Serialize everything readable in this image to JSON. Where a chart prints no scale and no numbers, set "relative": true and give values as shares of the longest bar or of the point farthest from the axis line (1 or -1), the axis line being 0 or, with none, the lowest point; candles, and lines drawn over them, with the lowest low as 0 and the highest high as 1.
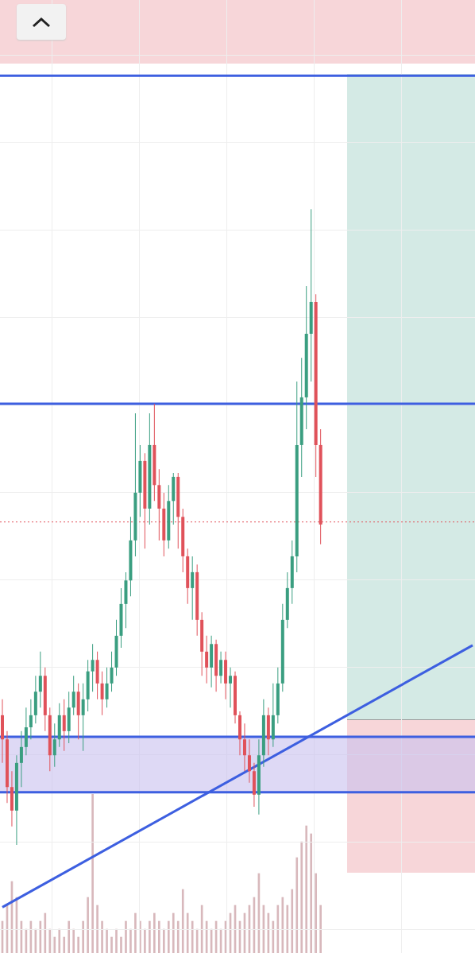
{
  "chart_data": [
    {
      "type": "candlestick",
      "relative": true,
      "grid": true,
      "categories": [
        null,
        null,
        null,
        null,
        null,
        null,
        null,
        null,
        null,
        null,
        null,
        null,
        null,
        null,
        null,
        null,
        null,
        null,
        null,
        null,
        null,
        null,
        null,
        null,
        null,
        null,
        null,
        null,
        null,
        null,
        null,
        null,
        null,
        null,
        null,
        null,
        null,
        null,
        null,
        null,
        null,
        null,
        null,
        null,
        null,
        null,
        null,
        null,
        null,
        null,
        null,
        null,
        null,
        null,
        null,
        null,
        null,
        null,
        null,
        null,
        null,
        null,
        null,
        null,
        null,
        null,
        null,
        null,
        null,
        null,
        null,
        null,
        null,
        null,
        null,
        null,
        null,
        null,
        null,
        null,
        null,
        null,
        null,
        null,
        null,
        null,
        null,
        null,
        null,
        null,
        null,
        null,
        null,
        null,
        null,
        null,
        null,
        null,
        null,
        null
      ],
      "ohlc": [
        [
          0.204,
          0.229,
          0.129,
          0.166
        ],
        [
          0.166,
          0.179,
          0.066,
          0.091
        ],
        [
          0.091,
          0.116,
          0.029,
          0.054
        ],
        [
          0.054,
          0.141,
          0,
          0.129
        ],
        [
          0.129,
          0.179,
          0.091,
          0.154
        ],
        [
          0.154,
          0.216,
          0.141,
          0.185
        ],
        [
          0.185,
          0.229,
          0.166,
          0.204
        ],
        [
          0.204,
          0.266,
          0.191,
          0.241
        ],
        [
          0.241,
          0.304,
          0.216,
          0.266
        ],
        [
          0.266,
          0.279,
          0.179,
          0.204
        ],
        [
          0.204,
          0.216,
          0.116,
          0.141
        ],
        [
          0.141,
          0.191,
          0.123,
          0.166
        ],
        [
          0.166,
          0.223,
          0.154,
          0.204
        ],
        [
          0.204,
          0.229,
          0.148,
          0.179
        ],
        [
          0.179,
          0.241,
          0.16,
          0.216
        ],
        [
          0.216,
          0.266,
          0.204,
          0.241
        ],
        [
          0.241,
          0.254,
          0.166,
          0.204
        ],
        [
          0.204,
          0.254,
          0.148,
          0.229
        ],
        [
          0.229,
          0.291,
          0.21,
          0.273
        ],
        [
          0.273,
          0.316,
          0.241,
          0.291
        ],
        [
          0.291,
          0.304,
          0.229,
          0.254
        ],
        [
          0.254,
          0.273,
          0.204,
          0.229
        ],
        [
          0.229,
          0.279,
          0.216,
          0.254
        ],
        [
          0.254,
          0.304,
          0.241,
          0.279
        ],
        [
          0.279,
          0.354,
          0.266,
          0.329
        ],
        [
          0.329,
          0.404,
          0.31,
          0.379
        ],
        [
          0.379,
          0.429,
          0.341,
          0.416
        ],
        [
          0.416,
          0.516,
          0.391,
          0.479
        ],
        [
          0.479,
          0.679,
          0.454,
          0.554
        ],
        [
          0.554,
          0.629,
          0.516,
          0.604
        ],
        [
          0.604,
          0.616,
          0.466,
          0.529
        ],
        [
          0.529,
          0.679,
          0.504,
          0.629
        ],
        [
          0.629,
          0.694,
          0.541,
          0.566
        ],
        [
          0.566,
          0.591,
          0.479,
          0.529
        ],
        [
          0.529,
          0.554,
          0.454,
          0.479
        ],
        [
          0.479,
          0.566,
          0.466,
          0.541
        ],
        [
          0.541,
          0.585,
          0.504,
          0.579
        ],
        [
          0.579,
          0.585,
          0.466,
          0.516
        ],
        [
          0.516,
          0.529,
          0.429,
          0.454
        ],
        [
          0.454,
          0.466,
          0.379,
          0.404
        ],
        [
          0.404,
          0.454,
          0.354,
          0.429
        ],
        [
          0.429,
          0.441,
          0.329,
          0.354
        ],
        [
          0.354,
          0.366,
          0.266,
          0.304
        ],
        [
          0.304,
          0.329,
          0.254,
          0.279
        ],
        [
          0.279,
          0.329,
          0.248,
          0.316
        ],
        [
          0.316,
          0.323,
          0.241,
          0.266
        ],
        [
          0.266,
          0.304,
          0.254,
          0.291
        ],
        [
          0.291,
          0.304,
          0.229,
          0.254
        ],
        [
          0.254,
          0.279,
          0.216,
          0.266
        ],
        [
          0.266,
          0.273,
          0.191,
          0.204
        ],
        [
          0.204,
          0.21,
          0.141,
          0.166
        ],
        [
          0.166,
          0.191,
          0.116,
          0.141
        ],
        [
          0.141,
          0.166,
          0.098,
          0.116
        ],
        [
          0.116,
          0.129,
          0.06,
          0.079
        ],
        [
          0.079,
          0.166,
          0.048,
          0.141
        ],
        [
          0.141,
          0.229,
          0.123,
          0.204
        ],
        [
          0.204,
          0.216,
          0.141,
          0.166
        ],
        [
          0.166,
          0.254,
          0.154,
          0.204
        ],
        [
          0.204,
          0.279,
          0.191,
          0.254
        ],
        [
          0.254,
          0.379,
          0.241,
          0.354
        ],
        [
          0.354,
          0.429,
          0.341,
          0.404
        ],
        [
          0.404,
          0.479,
          0.379,
          0.454
        ],
        [
          0.454,
          0.729,
          0.429,
          0.629
        ],
        [
          0.629,
          0.766,
          0.579,
          0.704
        ],
        [
          0.704,
          0.879,
          0.654,
          0.804
        ],
        [
          0.804,
          1,
          0.729,
          0.854
        ],
        [
          0.854,
          0.866,
          0.579,
          0.629
        ],
        [
          0.629,
          0.654,
          0.473,
          0.504
        ],
        null,
        null,
        null,
        null,
        null,
        null,
        null,
        null,
        null,
        null,
        null,
        null,
        null,
        null,
        null,
        null,
        null,
        null,
        null,
        null,
        null,
        null,
        null,
        null,
        null,
        null,
        null,
        null,
        null,
        null,
        null,
        null
      ],
      "colors": [
        "#e0525a",
        "#e0525a",
        "#e0525a",
        "#3a9e80",
        "#3a9e80",
        "#3a9e80",
        "#3a9e80",
        "#3a9e80",
        "#3a9e80",
        "#e0525a",
        "#e0525a",
        "#3a9e80",
        "#3a9e80",
        "#e0525a",
        "#3a9e80",
        "#3a9e80",
        "#e0525a",
        "#3a9e80",
        "#3a9e80",
        "#3a9e80",
        "#e0525a",
        "#e0525a",
        "#3a9e80",
        "#3a9e80",
        "#3a9e80",
        "#3a9e80",
        "#3a9e80",
        "#3a9e80",
        "#3a9e80",
        "#3a9e80",
        "#e0525a",
        "#3a9e80",
        "#e0525a",
        "#e0525a",
        "#e0525a",
        "#3a9e80",
        "#3a9e80",
        "#e0525a",
        "#e0525a",
        "#e0525a",
        "#3a9e80",
        "#e0525a",
        "#e0525a",
        "#e0525a",
        "#3a9e80",
        "#e0525a",
        "#3a9e80",
        "#e0525a",
        "#3a9e80",
        "#e0525a",
        "#e0525a",
        "#e0525a",
        "#e0525a",
        "#e0525a",
        "#3a9e80",
        "#3a9e80",
        "#e0525a",
        "#3a9e80",
        "#3a9e80",
        "#3a9e80",
        "#3a9e80",
        "#3a9e80",
        "#3a9e80",
        "#3a9e80",
        "#3a9e80",
        "#3a9e80",
        "#e0525a",
        "#e0525a",
        null,
        null,
        null,
        null,
        null,
        null,
        null,
        null,
        null,
        null,
        null,
        null,
        null,
        null,
        null,
        null,
        null,
        null,
        null,
        null,
        null,
        null,
        null,
        null,
        null,
        null,
        null,
        null,
        null,
        null,
        null,
        null
      ],
      "series": [
        {
          "type": "line",
          "color": "#3d5fe0",
          "values": [
            -0.098,
            null,
            null,
            null,
            null,
            null,
            null,
            null,
            null,
            null,
            null,
            null,
            null,
            null,
            null,
            null,
            null,
            null,
            null,
            null,
            null,
            null,
            null,
            null,
            null,
            null,
            null,
            null,
            null,
            null,
            null,
            null,
            null,
            null,
            null,
            null,
            null,
            null,
            null,
            null,
            null,
            null,
            null,
            null,
            null,
            null,
            null,
            null,
            null,
            null,
            null,
            null,
            null,
            null,
            null,
            null,
            null,
            null,
            null,
            null,
            null,
            null,
            null,
            null,
            null,
            null,
            null,
            null,
            null,
            null,
            null,
            null,
            null,
            null,
            null,
            null,
            null,
            null,
            null,
            null,
            null,
            null,
            null,
            null,
            null,
            null,
            null,
            null,
            null,
            null,
            null,
            null,
            null,
            null,
            null,
            null,
            null,
            null,
            null,
            0.314
          ]
        }
      ],
      "ref_lines": [
        {
          "axis": "y",
          "value": 1.21,
          "color": "#3d5fe0"
        },
        {
          "axis": "y",
          "value": 0.694,
          "color": "#3d5fe0"
        },
        {
          "axis": "y",
          "value": 0.17,
          "color": "#3d5fe0"
        },
        {
          "axis": "y",
          "value": 0.083,
          "color": "#3d5fe0"
        },
        {
          "axis": "y",
          "value": 0.508,
          "color": "#e0525a",
          "line_style": "dotted"
        }
      ],
      "bands": [
        {
          "axis": "y",
          "from": 0.083,
          "to": 0.17,
          "color": "#c8c0ee"
        }
      ]
    },
    {
      "type": "bar",
      "relative": true,
      "color": "#d8b8bc",
      "categories": [
        null,
        null,
        null,
        null,
        null,
        null,
        null,
        null,
        null,
        null,
        null,
        null,
        null,
        null,
        null,
        null,
        null,
        null,
        null,
        null,
        null,
        null,
        null,
        null,
        null,
        null,
        null,
        null,
        null,
        null,
        null,
        null,
        null,
        null,
        null,
        null,
        null,
        null,
        null,
        null,
        null,
        null,
        null,
        null,
        null,
        null,
        null,
        null,
        null,
        null,
        null,
        null,
        null,
        null,
        null,
        null,
        null,
        null,
        null,
        null,
        null,
        null,
        null,
        null,
        null,
        null,
        null,
        null,
        null,
        null,
        null,
        null,
        null,
        null,
        null,
        null,
        null,
        null,
        null,
        null,
        null,
        null,
        null,
        null,
        null,
        null,
        null,
        null,
        null,
        null,
        null,
        null,
        null,
        null,
        null,
        null,
        null,
        null,
        null,
        null
      ],
      "values": [
        0.2,
        0.3,
        0.45,
        0.35,
        0.2,
        0.15,
        0.2,
        0.15,
        0.2,
        0.25,
        0.15,
        0.1,
        0.15,
        0.1,
        0.2,
        0.15,
        0.1,
        0.2,
        0.35,
        1,
        0.3,
        0.2,
        0.15,
        0.1,
        0.15,
        0.1,
        0.2,
        0.15,
        0.25,
        0.2,
        0.15,
        0.2,
        0.25,
        0.2,
        0.15,
        0.2,
        0.25,
        0.2,
        0.4,
        0.25,
        0.2,
        0.15,
        0.3,
        0.2,
        0.15,
        0.2,
        0.15,
        0.2,
        0.25,
        0.3,
        0.2,
        0.25,
        0.3,
        0.35,
        0.5,
        0.3,
        0.25,
        0.2,
        0.3,
        0.35,
        0.3,
        0.4,
        0.6,
        0.7,
        0.8,
        0.75,
        0.5,
        0.3,
        null,
        null,
        null,
        null,
        null,
        null,
        null,
        null,
        null,
        null,
        null,
        null,
        null,
        null,
        null,
        null,
        null,
        null,
        null,
        null,
        null,
        null,
        null,
        null,
        null,
        null,
        null,
        null,
        null,
        null,
        null,
        null
      ]
    }
  ]
}
